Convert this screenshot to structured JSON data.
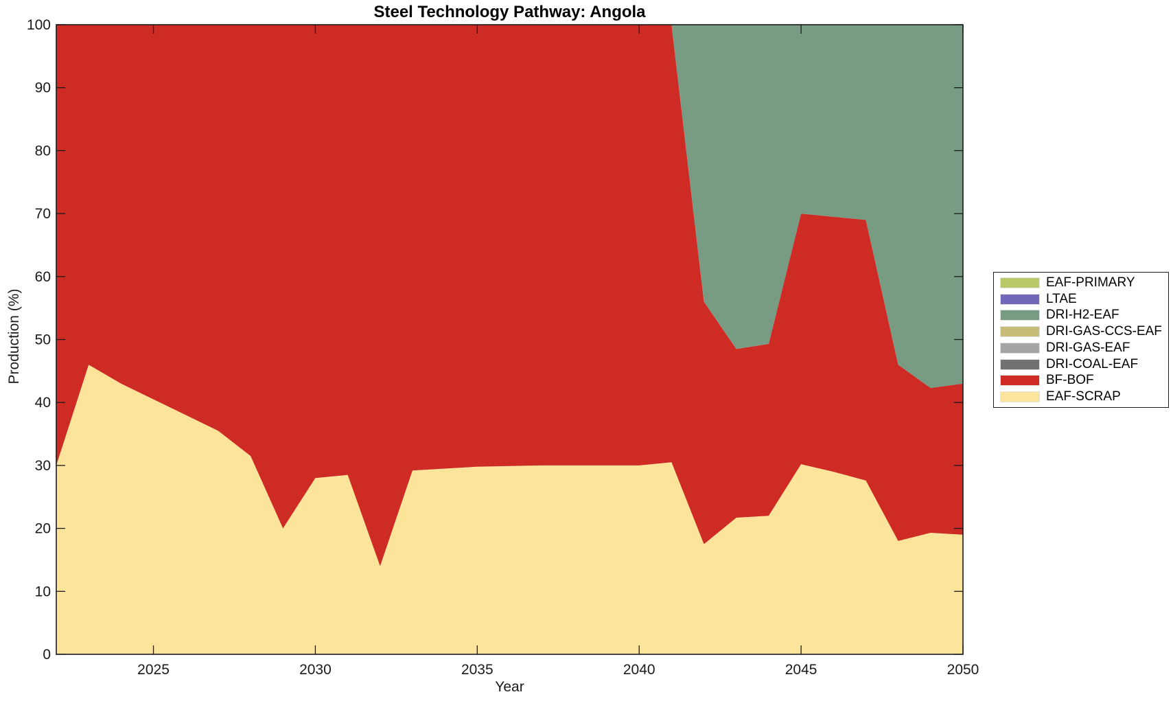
{
  "title": "Steel Technology Pathway: Angola",
  "xlabel": "Year",
  "ylabel": "Production (%)",
  "chart_data": {
    "type": "area",
    "stacked": true,
    "title": "Steel Technology Pathway: Angola",
    "xlabel": "Year",
    "ylabel": "Production (%)",
    "xlim": [
      2022,
      2050
    ],
    "ylim": [
      0,
      100
    ],
    "xticks": [
      2025,
      2030,
      2035,
      2040,
      2045,
      2050
    ],
    "yticks": [
      0,
      10,
      20,
      30,
      40,
      50,
      60,
      70,
      80,
      90,
      100
    ],
    "grid": false,
    "legend_position": "right-outside",
    "axis_color": "#1a1a1a",
    "x": [
      2022,
      2023,
      2024,
      2025,
      2026,
      2027,
      2028,
      2029,
      2030,
      2031,
      2032,
      2033,
      2034,
      2035,
      2036,
      2037,
      2038,
      2039,
      2040,
      2041,
      2042,
      2043,
      2044,
      2045,
      2046,
      2047,
      2048,
      2049,
      2050
    ],
    "series": [
      {
        "name": "EAF-SCRAP",
        "color": "#FCE49B",
        "values": [
          30,
          46,
          43,
          40.5,
          38,
          35.5,
          31.5,
          20,
          28,
          28.5,
          14,
          29.2,
          29.5,
          29.8,
          29.9,
          30,
          30,
          30,
          30,
          30.5,
          17.5,
          21.7,
          22,
          30.2,
          29,
          27.6,
          18,
          19.3,
          19
        ]
      },
      {
        "name": "BF-BOF",
        "color": "#CE2B24",
        "values": [
          70,
          54,
          57,
          59.5,
          62,
          64.5,
          68.5,
          80,
          72,
          71.5,
          86,
          70.8,
          70.5,
          70.2,
          70.1,
          70,
          70,
          70,
          70,
          69.5,
          38.5,
          26.8,
          27.3,
          39.8,
          40.5,
          41.4,
          28,
          23,
          24
        ]
      },
      {
        "name": "DRI-COAL-EAF",
        "color": "#727072",
        "values": [
          0,
          0,
          0,
          0,
          0,
          0,
          0,
          0,
          0,
          0,
          0,
          0,
          0,
          0,
          0,
          0,
          0,
          0,
          0,
          0,
          0,
          0,
          0,
          0,
          0,
          0,
          0,
          0,
          0
        ]
      },
      {
        "name": "DRI-GAS-EAF",
        "color": "#A5A5A5",
        "values": [
          0,
          0,
          0,
          0,
          0,
          0,
          0,
          0,
          0,
          0,
          0,
          0,
          0,
          0,
          0,
          0,
          0,
          0,
          0,
          0,
          0,
          0,
          0,
          0,
          0,
          0,
          0,
          0,
          0
        ]
      },
      {
        "name": "DRI-GAS-CCS-EAF",
        "color": "#C7BD77",
        "values": [
          0,
          0,
          0,
          0,
          0,
          0,
          0,
          0,
          0,
          0,
          0,
          0,
          0,
          0,
          0,
          0,
          0,
          0,
          0,
          0,
          0,
          0,
          0,
          0,
          0,
          0,
          0,
          0,
          0
        ]
      },
      {
        "name": "DRI-H2-EAF",
        "color": "#789B84",
        "values": [
          0,
          0,
          0,
          0,
          0,
          0,
          0,
          0,
          0,
          0,
          0,
          0,
          0,
          0,
          0,
          0,
          0,
          0,
          0,
          0,
          44,
          51.5,
          50.7,
          30,
          30.5,
          31,
          54,
          57.7,
          57
        ]
      },
      {
        "name": "LTAE",
        "color": "#7268B9",
        "values": [
          0,
          0,
          0,
          0,
          0,
          0,
          0,
          0,
          0,
          0,
          0,
          0,
          0,
          0,
          0,
          0,
          0,
          0,
          0,
          0,
          0,
          0,
          0,
          0,
          0,
          0,
          0,
          0,
          0
        ]
      },
      {
        "name": "EAF-PRIMARY",
        "color": "#B9C869",
        "values": [
          0,
          0,
          0,
          0,
          0,
          0,
          0,
          0,
          0,
          0,
          0,
          0,
          0,
          0,
          0,
          0,
          0,
          0,
          0,
          0,
          0,
          0,
          0,
          0,
          0,
          0,
          0,
          0,
          0
        ]
      }
    ],
    "legend_entries": [
      "EAF-PRIMARY",
      "LTAE",
      "DRI-H2-EAF",
      "DRI-GAS-CCS-EAF",
      "DRI-GAS-EAF",
      "DRI-COAL-EAF",
      "BF-BOF",
      "EAF-SCRAP"
    ]
  }
}
